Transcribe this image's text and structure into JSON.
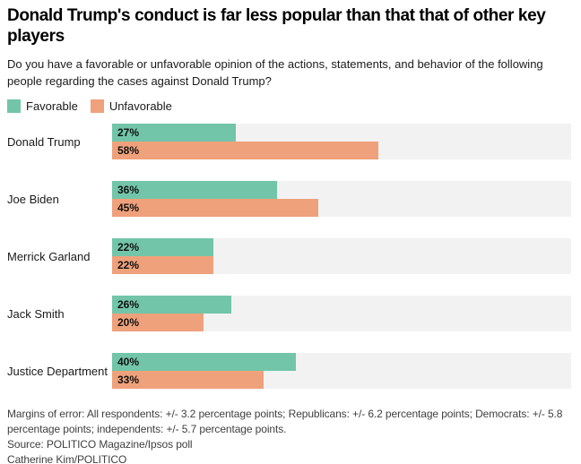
{
  "header": {
    "title": "Donald Trump's conduct is far less popular than that that of other key players",
    "subtitle": "Do you have a favorable or unfavorable opinion of the actions, statements, and behavior of the following people regarding the cases against Donald Trump?"
  },
  "chart_data": {
    "type": "bar",
    "orientation": "horizontal",
    "categories": [
      "Donald Trump",
      "Joe Biden",
      "Merrick Garland",
      "Jack Smith",
      "Justice Department"
    ],
    "series": [
      {
        "name": "Favorable",
        "color": "#72c5a9",
        "values": [
          27,
          36,
          22,
          26,
          40
        ]
      },
      {
        "name": "Unfavorable",
        "color": "#efa17b",
        "values": [
          58,
          45,
          22,
          20,
          33
        ]
      }
    ],
    "value_suffix": "%",
    "xlim": [
      0,
      100
    ],
    "track_color": "#f2f2f2",
    "grid": "off",
    "legend_position": "top-left",
    "value_labels": "inside-left"
  },
  "footer": {
    "margins_of_error": "Margins of error: All respondents: +/- 3.2 percentage points; Republicans: +/- 6.2 percentage points; Democrats: +/- 5.8 percentage points; independents: +/- 5.7 percentage points.",
    "source": "Source: POLITICO Magazine/Ipsos poll",
    "byline": "Catherine Kim/POLITICO"
  }
}
